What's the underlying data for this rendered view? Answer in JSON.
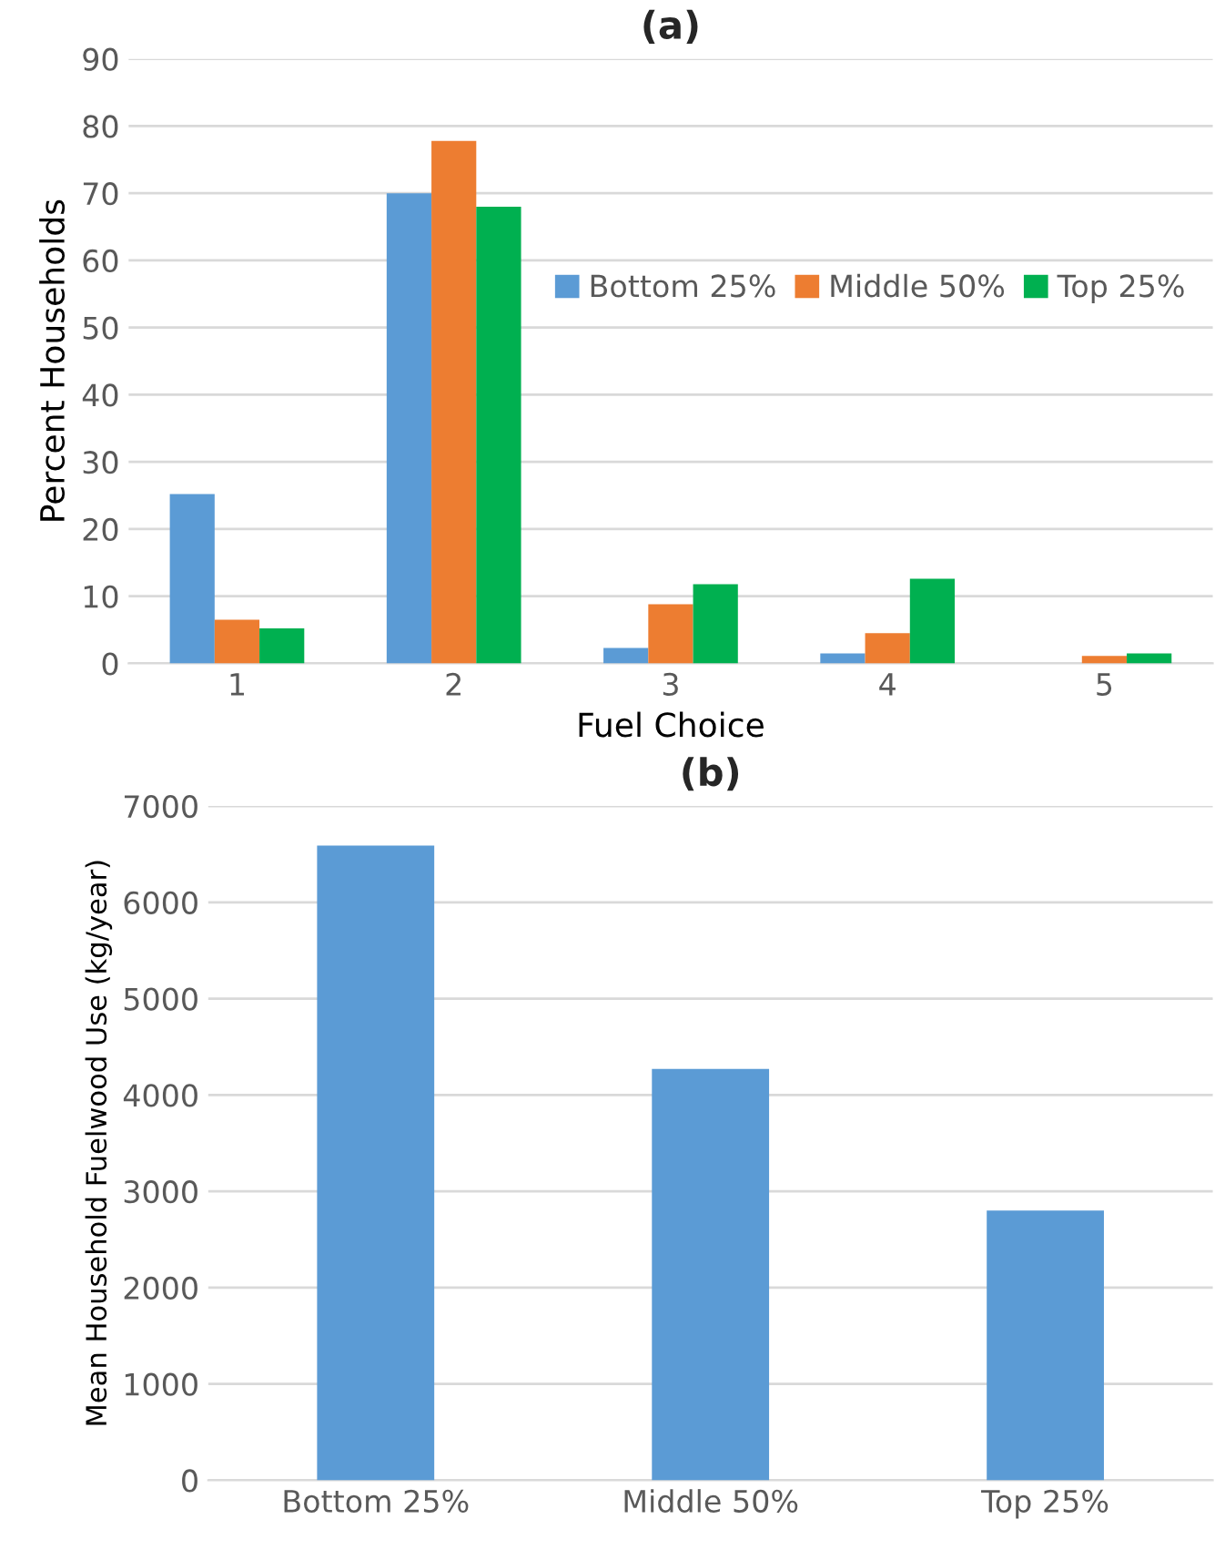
{
  "chart_data": [
    {
      "type": "bar",
      "title": "(a)",
      "xlabel": "Fuel Choice",
      "ylabel": "Percent Households",
      "categories": [
        "1",
        "2",
        "3",
        "4",
        "5"
      ],
      "series": [
        {
          "name": "Bottom 25%",
          "color": "#5b9bd5",
          "values": [
            25.2,
            70,
            2.3,
            1.5,
            0
          ]
        },
        {
          "name": "Middle 50%",
          "color": "#ed7d31",
          "values": [
            6.5,
            77.8,
            8.8,
            4.5,
            1.1
          ]
        },
        {
          "name": "Top 25%",
          "color": "#00b050",
          "values": [
            5.2,
            68.0,
            11.8,
            12.6,
            1.5
          ]
        }
      ],
      "ylim": [
        0,
        90
      ],
      "yticks": [
        0,
        10,
        20,
        30,
        40,
        50,
        60,
        70,
        80,
        90
      ],
      "grid": "y",
      "legend": "right"
    },
    {
      "type": "bar",
      "title": "(b)",
      "ylabel": "Mean Household Fuelwood Use (kg/year)",
      "categories": [
        "Bottom 25%",
        "Middle 50%",
        "Top 25%"
      ],
      "values": [
        6590,
        4270,
        2800
      ],
      "colors": [
        "#5b9bd5",
        "#5b9bd5",
        "#5b9bd5"
      ],
      "ylim": [
        0,
        7000
      ],
      "yticks": [
        0,
        1000,
        2000,
        3000,
        4000,
        5000,
        6000,
        7000
      ],
      "grid": "y"
    }
  ]
}
